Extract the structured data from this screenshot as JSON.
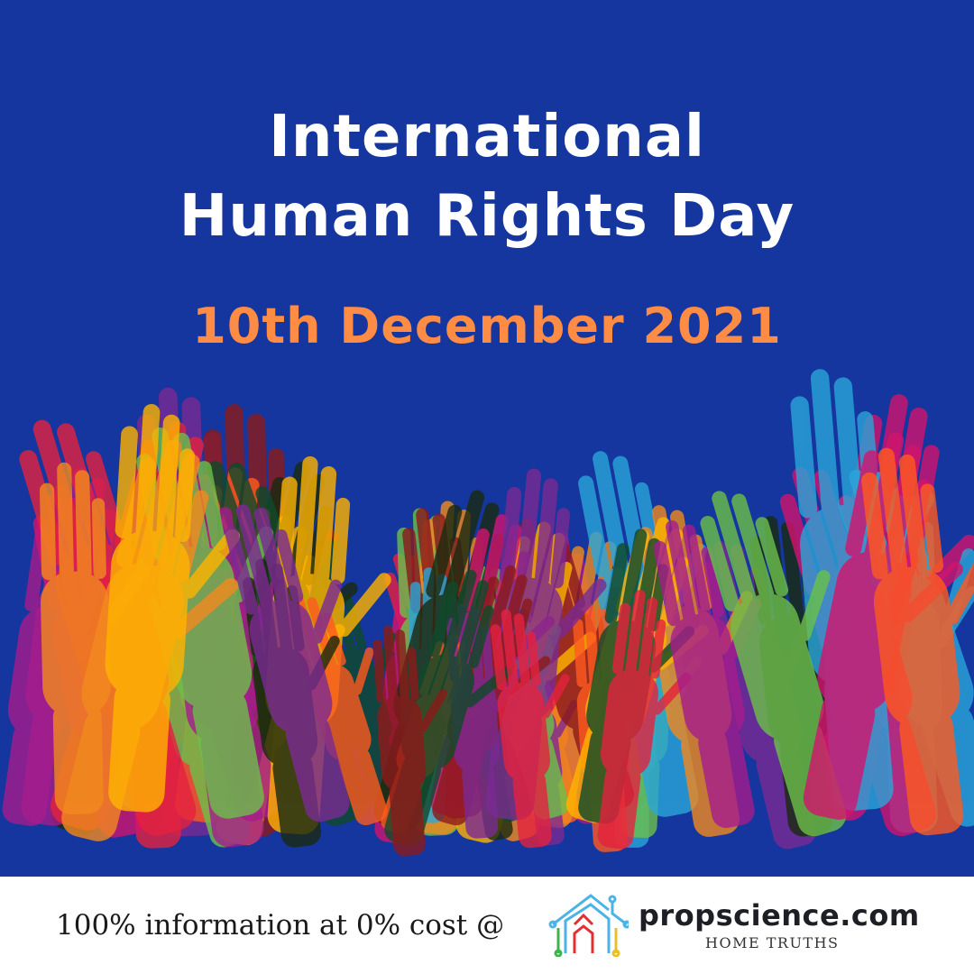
{
  "poster": {
    "title_line1": "International",
    "title_line2": "Human Rights Day",
    "date": "10th December 2021",
    "colors": {
      "background": "#15359f",
      "date": "#ff8c45",
      "title": "#ffffff"
    }
  },
  "footer": {
    "tagline": "100% information at 0% cost  @",
    "logo": {
      "name": "propscience.com",
      "subtitle": "HOME TRUTHS",
      "icon": "house-circuit-icon"
    }
  }
}
